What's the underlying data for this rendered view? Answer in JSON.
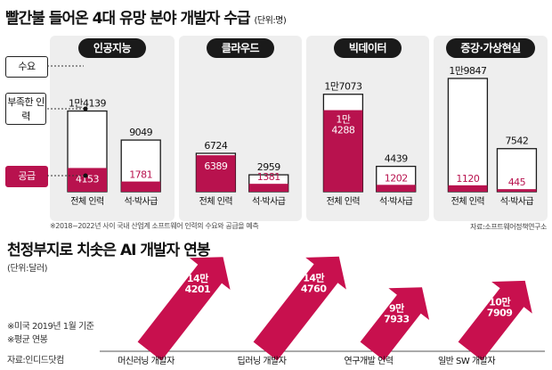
{
  "title": "빨간불 들어온 4대 유망 분야 개발자 수급",
  "unit": "(단위:명)",
  "legend": {
    "demand": "수요",
    "shortage": "부족한 인력",
    "supply": "공급"
  },
  "footnote": "※2018~2022년 사이 국내 산업계 소프트웨어 인력의 수요와 공급을 예측",
  "source": "자료:소프트웨어정책연구소",
  "colors": {
    "supply": "#b8124e",
    "panel": "#eeeeee",
    "arrow": "#c8104e",
    "dark": "#1a1a1a"
  },
  "chart_data": [
    {
      "type": "bar",
      "title": "빨간불 들어온 4대 유망 분야 개발자 수급",
      "panels": [
        {
          "name": "인공지능",
          "categories": [
            "전체 인력",
            "석·박사급"
          ],
          "series": [
            {
              "name": "수요",
              "values": [
                14139,
                9049
              ],
              "labels": [
                "1만4139",
                "9049"
              ]
            },
            {
              "name": "공급",
              "values": [
                4153,
                1781
              ],
              "labels": [
                "4153",
                "1781"
              ]
            }
          ]
        },
        {
          "name": "클라우드",
          "categories": [
            "전체 인력",
            "석·박사급"
          ],
          "series": [
            {
              "name": "수요",
              "values": [
                6724,
                2959
              ],
              "labels": [
                "6724",
                "2959"
              ]
            },
            {
              "name": "공급",
              "values": [
                6389,
                1381
              ],
              "labels": [
                "6389",
                "1381"
              ]
            }
          ]
        },
        {
          "name": "빅데이터",
          "categories": [
            "전체 인력",
            "석·박사급"
          ],
          "series": [
            {
              "name": "수요",
              "values": [
                17073,
                4439
              ],
              "labels": [
                "1만7073",
                "4439"
              ]
            },
            {
              "name": "공급",
              "values": [
                14288,
                1202
              ],
              "labels": [
                "1만\n4288",
                "1202"
              ]
            }
          ]
        },
        {
          "name": "증강·가상현실",
          "categories": [
            "전체 인력",
            "석·박사급"
          ],
          "series": [
            {
              "name": "수요",
              "values": [
                19847,
                7542
              ],
              "labels": [
                "1만9847",
                "7542"
              ]
            },
            {
              "name": "공급",
              "values": [
                1120,
                445
              ],
              "labels": [
                "1120",
                "445"
              ]
            }
          ]
        }
      ]
    },
    {
      "type": "bar",
      "title": "천정부지로 치솟은 AI 개발자 연봉",
      "unit": "(단위:달러)",
      "categories": [
        "머신러닝 개발자",
        "딥러닝 개발자",
        "연구개발 인력",
        "일반 SW 개발자"
      ],
      "values": [
        144201,
        144760,
        97933,
        107909
      ],
      "labels": [
        "14만\n4201",
        "14만\n4760",
        "9만\n7933",
        "10만\n7909"
      ]
    }
  ],
  "salary": {
    "title": "천정부지로 치솟은 AI 개발자 연봉",
    "unit": "(단위:달러)",
    "note1": "※미국 2019년 1월 기준",
    "note2": "※평균 연봉",
    "source": "자료:인디드닷컴"
  }
}
